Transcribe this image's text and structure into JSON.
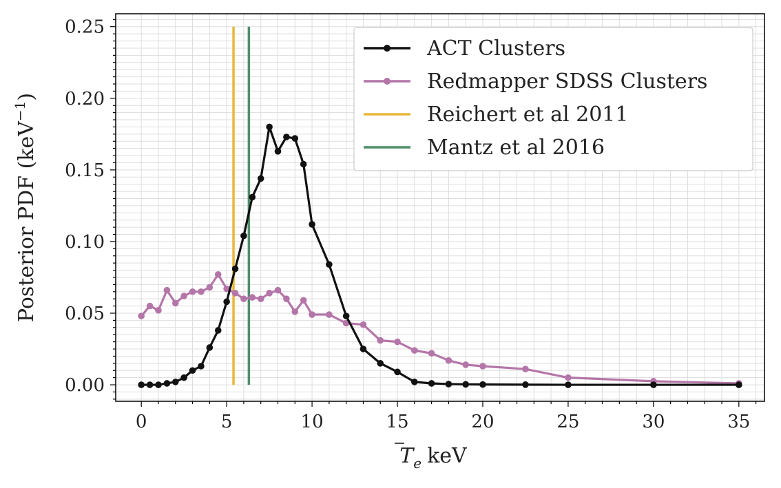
{
  "chart_data": {
    "type": "line",
    "title": "",
    "xlabel": "keV",
    "xlabel_symbol": "T",
    "xlabel_subscript": "e",
    "ylabel": "Posterior PDF (keV",
    "ylabel_sup": "−1",
    "ylabel_close": ")",
    "xlim": [
      -1.5,
      36.5
    ],
    "ylim": [
      -0.0115,
      0.259
    ],
    "x_ticks": [
      0,
      5,
      10,
      15,
      20,
      25,
      30,
      35
    ],
    "x_tick_labels": [
      "0",
      "5",
      "10",
      "15",
      "20",
      "25",
      "30",
      "35"
    ],
    "y_ticks": [
      0.0,
      0.05,
      0.1,
      0.15,
      0.2,
      0.25
    ],
    "y_tick_labels": [
      "0.00",
      "0.05",
      "0.10",
      "0.15",
      "0.20",
      "0.25"
    ],
    "grid": true,
    "legend_position": "top-right",
    "series": [
      {
        "name": "ACT Clusters",
        "color": "#111111",
        "marker": "circle",
        "x": [
          0,
          0.5,
          1,
          1.5,
          2,
          2.5,
          3,
          3.5,
          4,
          4.5,
          5,
          5.5,
          6,
          6.5,
          7,
          7.5,
          8,
          8.5,
          9,
          9.5,
          10,
          11,
          12,
          13,
          14,
          15,
          16,
          17,
          18,
          19,
          20,
          22.5,
          25,
          30,
          35
        ],
        "y": [
          0.0,
          0.0,
          0.0,
          0.001,
          0.002,
          0.005,
          0.01,
          0.013,
          0.026,
          0.038,
          0.058,
          0.081,
          0.104,
          0.131,
          0.144,
          0.18,
          0.163,
          0.173,
          0.172,
          0.154,
          0.112,
          0.084,
          0.048,
          0.025,
          0.015,
          0.009,
          0.002,
          0.001,
          0.0005,
          0.0003,
          0.0002,
          0.0001,
          0.0,
          0.0,
          0.0
        ]
      },
      {
        "name": "Redmapper SDSS Clusters",
        "color": "#b476a8",
        "marker": "circle",
        "x": [
          0,
          0.5,
          1,
          1.5,
          2,
          2.5,
          3,
          3.5,
          4,
          4.5,
          5,
          5.5,
          6,
          6.5,
          7,
          7.5,
          8,
          8.5,
          9,
          9.5,
          10,
          11,
          12,
          13,
          14,
          15,
          16,
          17,
          18,
          19,
          20,
          22.5,
          25,
          30,
          35
        ],
        "y": [
          0.048,
          0.055,
          0.052,
          0.066,
          0.057,
          0.062,
          0.065,
          0.065,
          0.068,
          0.077,
          0.067,
          0.064,
          0.06,
          0.061,
          0.06,
          0.064,
          0.066,
          0.06,
          0.051,
          0.059,
          0.049,
          0.049,
          0.043,
          0.042,
          0.031,
          0.03,
          0.024,
          0.022,
          0.017,
          0.014,
          0.013,
          0.011,
          0.005,
          0.0025,
          0.001
        ]
      }
    ],
    "vlines": [
      {
        "name": "Reichert et al 2011",
        "color": "#e8b838",
        "x": 5.4,
        "y_range": [
          0.0,
          0.25
        ]
      },
      {
        "name": "Mantz et al 2016",
        "color": "#4e8f6a",
        "x": 6.3,
        "y_range": [
          0.0,
          0.25
        ]
      }
    ]
  }
}
